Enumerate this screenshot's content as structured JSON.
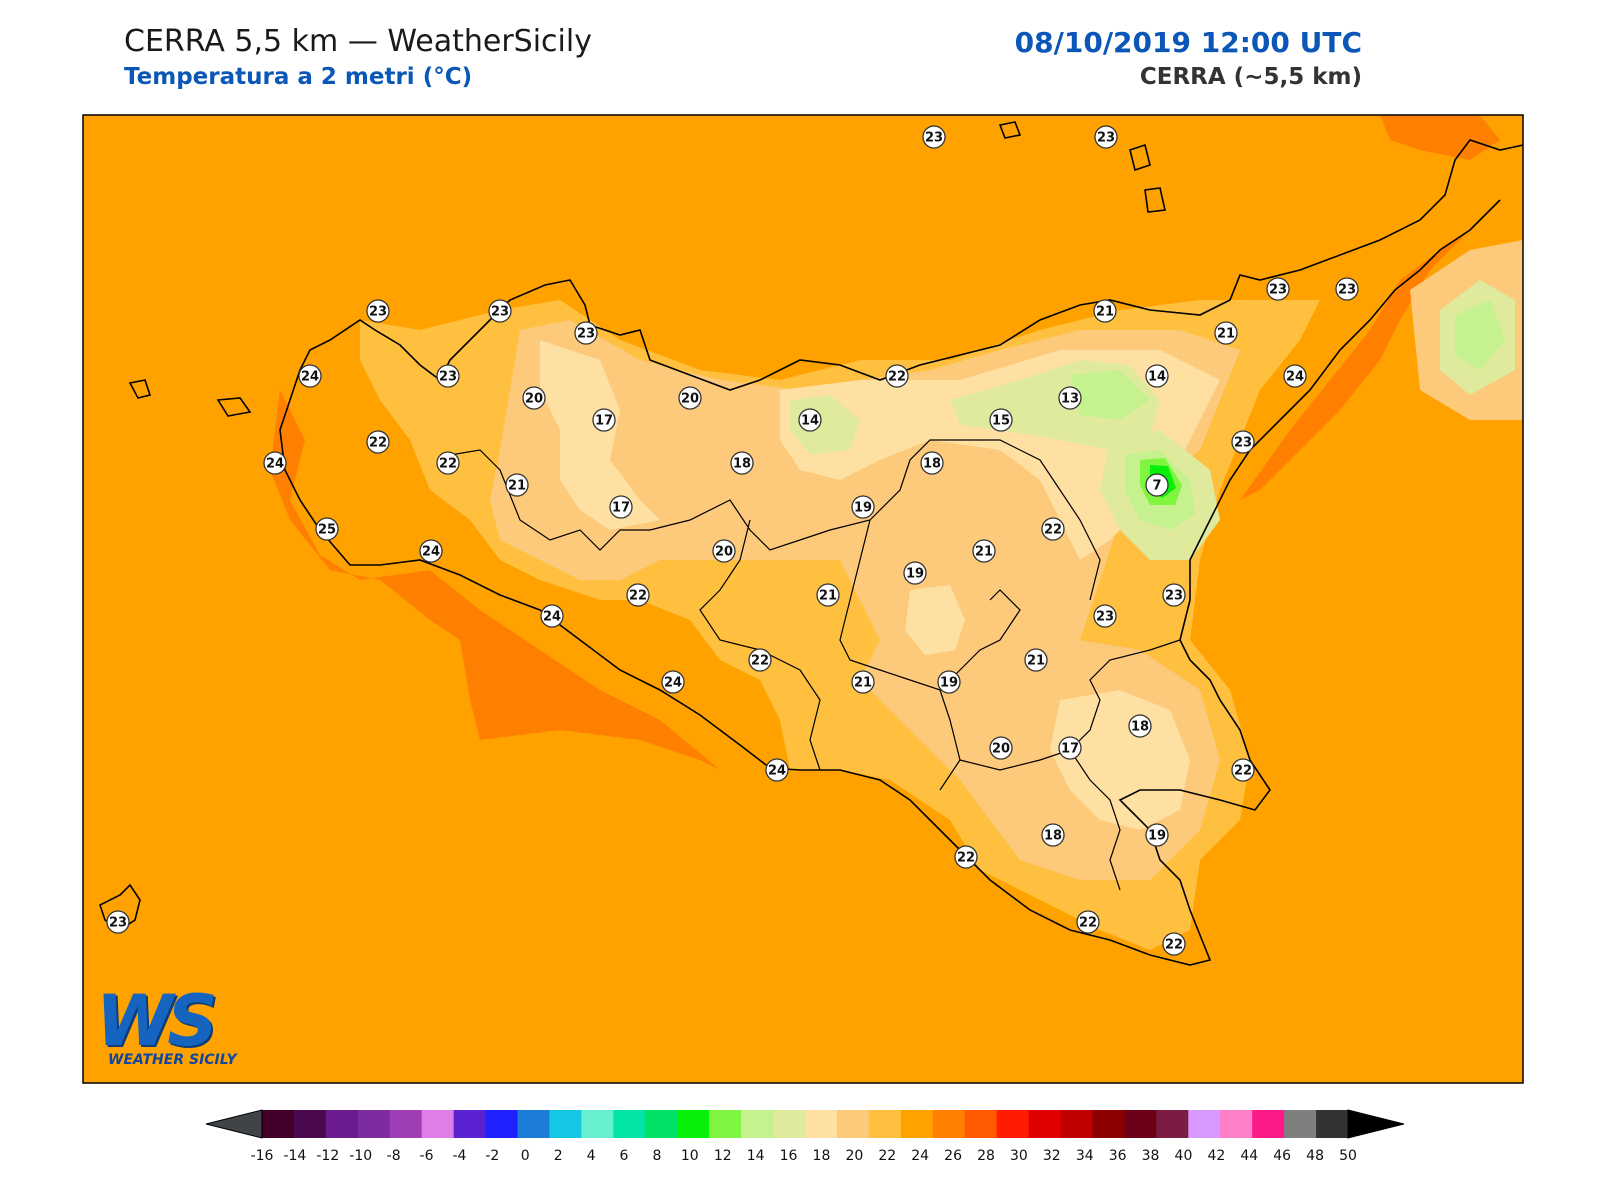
{
  "header": {
    "title": "CERRA 5,5 km — WeatherSicily",
    "subtitle": "Temperatura a 2 metri (°C)",
    "datetime": "08/10/2019 12:00 UTC",
    "model": "CERRA (~5,5 km)"
  },
  "logo": {
    "letters": "WS",
    "name": "WEATHER SICILY"
  },
  "colors": {
    "sea_background": "#ffa200",
    "coast_line": "#000000",
    "title_blue": "#0b57b8",
    "warm_coast": "#ff8000"
  },
  "stations": [
    {
      "value": "23"
    },
    {
      "value": "23"
    },
    {
      "value": "23"
    },
    {
      "value": "23"
    },
    {
      "value": "23"
    },
    {
      "value": "24"
    },
    {
      "value": "23"
    },
    {
      "value": "22"
    },
    {
      "value": "22"
    },
    {
      "value": "24"
    },
    {
      "value": "25"
    },
    {
      "value": "24"
    },
    {
      "value": "20"
    },
    {
      "value": "17"
    },
    {
      "value": "21"
    },
    {
      "value": "17"
    },
    {
      "value": "20"
    },
    {
      "value": "14"
    },
    {
      "value": "18"
    },
    {
      "value": "19"
    },
    {
      "value": "20"
    },
    {
      "value": "22"
    },
    {
      "value": "24"
    },
    {
      "value": "22"
    },
    {
      "value": "21"
    },
    {
      "value": "24"
    },
    {
      "value": "24"
    },
    {
      "value": "22"
    },
    {
      "value": "18"
    },
    {
      "value": "15"
    },
    {
      "value": "13"
    },
    {
      "value": "14"
    },
    {
      "value": "21"
    },
    {
      "value": "21"
    },
    {
      "value": "7"
    },
    {
      "value": "23"
    },
    {
      "value": "23"
    },
    {
      "value": "24"
    },
    {
      "value": "23"
    },
    {
      "value": "21"
    },
    {
      "value": "22"
    },
    {
      "value": "19"
    },
    {
      "value": "21"
    },
    {
      "value": "19"
    },
    {
      "value": "23"
    },
    {
      "value": "23"
    },
    {
      "value": "21"
    },
    {
      "value": "18"
    },
    {
      "value": "20"
    },
    {
      "value": "17"
    },
    {
      "value": "22"
    },
    {
      "value": "18"
    },
    {
      "value": "19"
    },
    {
      "value": "22"
    },
    {
      "value": "22"
    },
    {
      "value": "22"
    },
    {
      "value": "23"
    }
  ],
  "colorbar": {
    "colors": [
      "#42002a",
      "#4b0a4f",
      "#6a1c8e",
      "#7d2ba0",
      "#a03fb5",
      "#e07ee9",
      "#5a22d1",
      "#1f22ff",
      "#1b7dd6",
      "#15c7e4",
      "#66f0cf",
      "#00e5a5",
      "#00e065",
      "#06f00a",
      "#7ff53f",
      "#c5f28f",
      "#e0ea9d",
      "#ffe0a3",
      "#fdc97a",
      "#ffc040",
      "#ffa200",
      "#ff8000",
      "#ff5a00",
      "#ff1c00",
      "#e00000",
      "#c00000",
      "#8e0000",
      "#6d0018",
      "#7b1c45",
      "#d798ff",
      "#ff7fc8",
      "#ff1a8c",
      "#7f7f7f",
      "#333333"
    ],
    "ticks": [
      "-16",
      "-14",
      "-12",
      "-10",
      "-8",
      "-6",
      "-4",
      "-2",
      "0",
      "2",
      "4",
      "6",
      "8",
      "10",
      "12",
      "14",
      "16",
      "18",
      "20",
      "22",
      "24",
      "26",
      "28",
      "30",
      "32",
      "34",
      "36",
      "38",
      "40",
      "42",
      "44",
      "46",
      "48",
      "50"
    ]
  }
}
